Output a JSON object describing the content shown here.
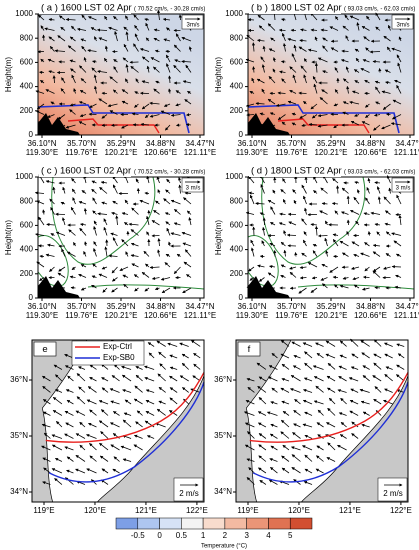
{
  "cross_sections": [
    {
      "label": "( a ) 1600 LST 02 Apr",
      "scale": "( 70.52 cm/s, - 30.28 cm/s)",
      "ref": "3m/s",
      "shaded": true
    },
    {
      "label": "( b ) 1800 LST 02 Apr",
      "scale": "( 93.03 cm/s, - 62.03 cm/s)",
      "ref": "3m/s",
      "shaded": true
    },
    {
      "label": "( c ) 1600 LST 02 Apr",
      "scale": "( 70.52 cm/s, - 30.28 cm/s)",
      "ref": "3 m/s",
      "shaded": false
    },
    {
      "label": "( d ) 1800 LST 02 Apr",
      "scale": "( 93.03 cm/s, - 62.03 cm/s)",
      "ref": "3 m/s",
      "shaded": false
    }
  ],
  "cross_section_axis": {
    "y_label": "Height(m)",
    "ylim": [
      0,
      1000
    ],
    "yticks": [
      0,
      200,
      400,
      600,
      800,
      1000
    ],
    "xticks": [
      {
        "lat": "36.10°N",
        "lon": "119.30°E"
      },
      {
        "lat": "35.70°N",
        "lon": "119.76°E"
      },
      {
        "lat": "35.29°N",
        "lon": "120.21°E"
      },
      {
        "lat": "34.88°N",
        "lon": "120.66°E"
      },
      {
        "lat": "34.47°N",
        "lon": "121.11°E"
      }
    ]
  },
  "maps": [
    {
      "label": "e",
      "ref": "2 m/s"
    },
    {
      "label": "f",
      "ref": "2 m/s"
    }
  ],
  "map_axis": {
    "xticks": [
      "119°E",
      "120°E",
      "121°E",
      "122°E"
    ],
    "yticks": [
      "36°N",
      "35°N",
      "34°N"
    ]
  },
  "legend": [
    {
      "name": "Exp-Ctrl",
      "color": "#e8201e"
    },
    {
      "name": "Exp-SB0",
      "color": "#1f2fd6"
    }
  ],
  "colorbar": {
    "title": "Temperature (°C)",
    "labels": [
      "-0.5",
      "0",
      "0.5",
      "1",
      "2",
      "3",
      "4",
      "5"
    ],
    "colors": [
      "#7d9fe6",
      "#aec6f0",
      "#d6e2f6",
      "#f3f3f3",
      "#f8dccd",
      "#f3baa2",
      "#eb9577",
      "#e07252",
      "#d24f31"
    ]
  }
}
